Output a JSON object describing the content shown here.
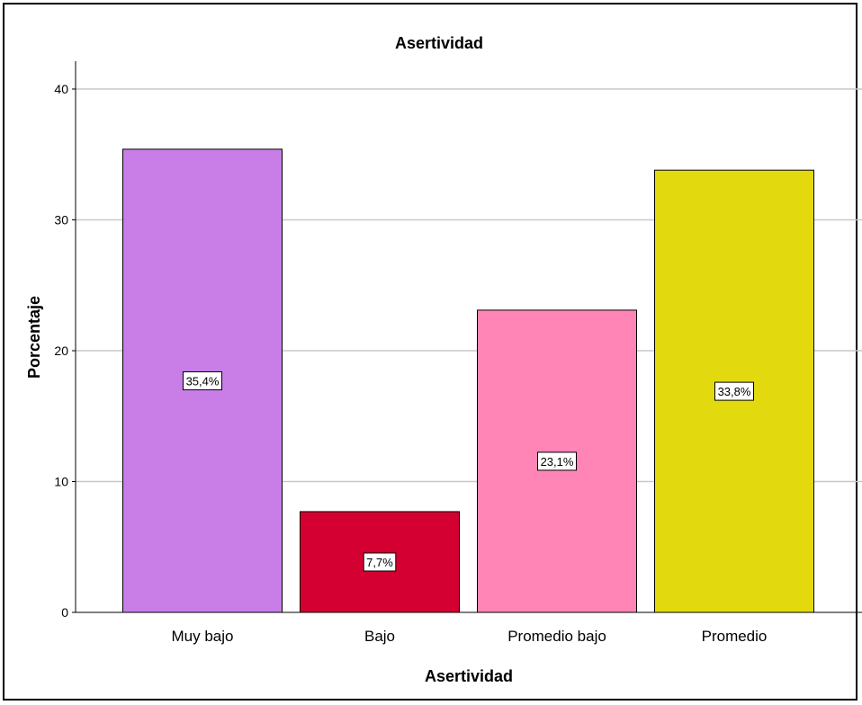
{
  "chart_data": {
    "type": "bar",
    "title": "Asertividad",
    "xlabel": "Asertividad",
    "ylabel": "Porcentaje",
    "categories": [
      "Muy bajo",
      "Bajo",
      "Promedio bajo",
      "Promedio"
    ],
    "values": [
      35.4,
      7.7,
      23.1,
      33.8
    ],
    "data_labels": [
      "35,4%",
      "7,7%",
      "23,1%",
      "33,8%"
    ],
    "colors": [
      "#c87ee6",
      "#d40031",
      "#ff85b6",
      "#e3d90f"
    ],
    "ylim": [
      0,
      40
    ],
    "yticks": [
      0,
      10,
      20,
      30,
      40
    ],
    "grid": true,
    "legend": "none"
  }
}
